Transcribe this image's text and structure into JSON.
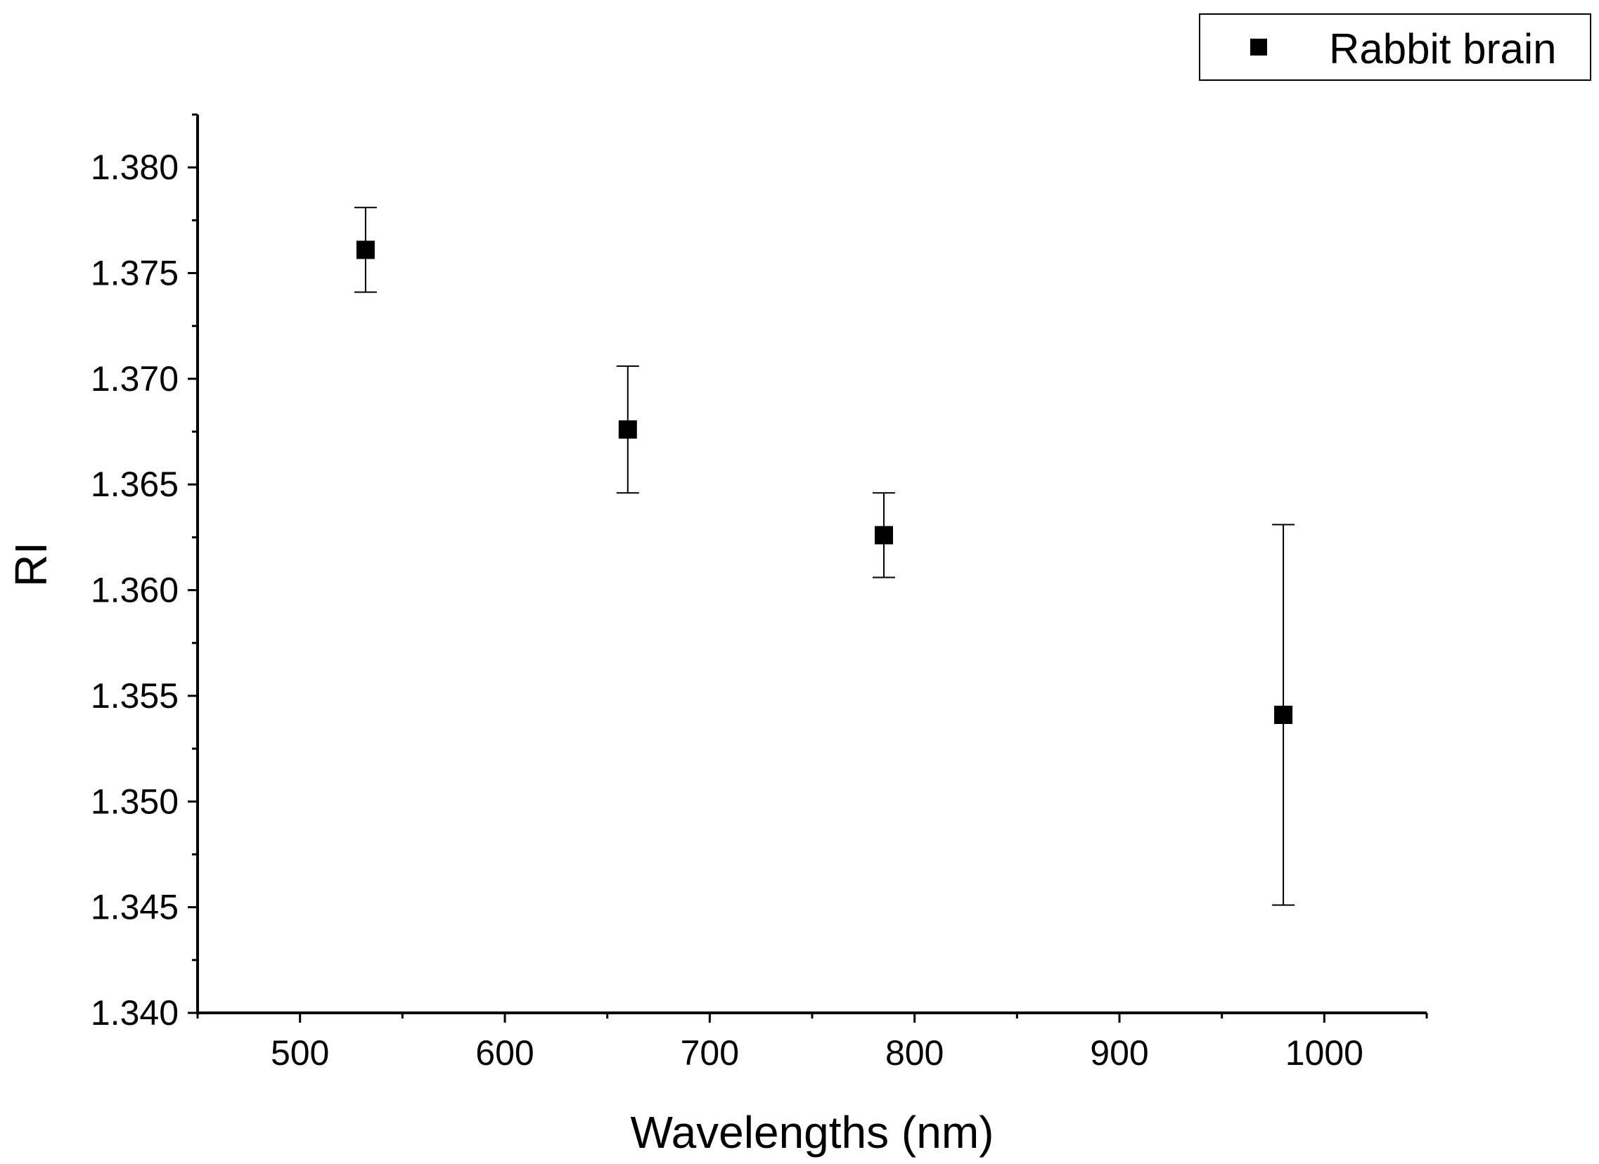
{
  "chart_data": {
    "type": "scatter",
    "xlabel": "Wavelengths (nm)",
    "ylabel": "RI",
    "xlim": [
      450,
      1050
    ],
    "ylim": [
      1.34,
      1.3825
    ],
    "xticks": [
      500,
      600,
      700,
      800,
      900,
      1000
    ],
    "xtick_labels": [
      "500",
      "600",
      "700",
      "800",
      "900",
      "1000"
    ],
    "yticks": [
      1.34,
      1.345,
      1.35,
      1.355,
      1.36,
      1.365,
      1.37,
      1.375,
      1.38
    ],
    "ytick_labels": [
      "1.340",
      "1.345",
      "1.350",
      "1.355",
      "1.360",
      "1.365",
      "1.370",
      "1.375",
      "1.380"
    ],
    "grid": false,
    "legend_position": "top-right",
    "series": [
      {
        "name": "Rabbit brain",
        "marker": "square",
        "color": "#000000",
        "points": [
          {
            "x": 532,
            "y": 1.3761,
            "err": 0.002
          },
          {
            "x": 660,
            "y": 1.3676,
            "err": 0.003
          },
          {
            "x": 785,
            "y": 1.3626,
            "err": 0.002
          },
          {
            "x": 980,
            "y": 1.3541,
            "err": 0.009
          }
        ]
      }
    ]
  }
}
